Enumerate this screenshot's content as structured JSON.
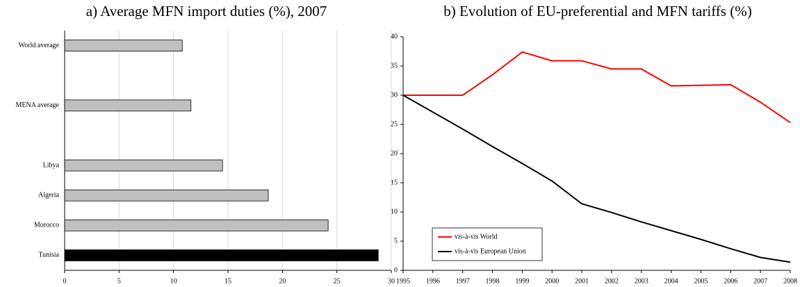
{
  "chart_data": [
    {
      "type": "barh",
      "title": "a) Average MFN import duties (%), 2007",
      "categories": [
        "World average",
        null,
        "MENA average",
        null,
        "Libya",
        "Algeria",
        "Morocco",
        "Tunisia"
      ],
      "values": [
        10.8,
        null,
        11.6,
        null,
        14.5,
        18.7,
        24.2,
        28.8
      ],
      "colors": [
        "#c0c0c0",
        "#c0c0c0",
        "#c0c0c0",
        "#c0c0c0",
        "#c0c0c0",
        "#c0c0c0",
        "#c0c0c0",
        "#000000"
      ],
      "xlim": [
        0,
        30
      ],
      "xticks": [
        0,
        5,
        10,
        15,
        20,
        25,
        30
      ],
      "grid": true
    },
    {
      "type": "line",
      "title": "b) Evolution of EU-preferential and MFN tariffs (%)",
      "x": [
        1995,
        1996,
        1997,
        1998,
        1999,
        2000,
        2001,
        2002,
        2003,
        2004,
        2005,
        2006,
        2007,
        2008
      ],
      "series": [
        {
          "name": "vis-à-vis World",
          "color": "#ff0000",
          "values": [
            30,
            30,
            30,
            33.5,
            37.4,
            35.9,
            35.9,
            34.5,
            34.5,
            31.6,
            31.7,
            31.8,
            28.8,
            25.3
          ]
        },
        {
          "name": "vis-à-vis European Union",
          "color": "#000000",
          "values": [
            30,
            27.1,
            24.2,
            21.2,
            18.3,
            15.3,
            11.4,
            9.9,
            8.3,
            6.8,
            5.3,
            3.7,
            2.2,
            1.4
          ]
        }
      ],
      "xlim": [
        1995,
        2008
      ],
      "xticks": [
        1995,
        1996,
        1997,
        1998,
        1999,
        2000,
        2001,
        2002,
        2003,
        2004,
        2005,
        2006,
        2007,
        2008
      ],
      "ylim": [
        0,
        40
      ],
      "yticks": [
        0,
        5,
        10,
        15,
        20,
        25,
        30,
        35,
        40
      ],
      "grid": false,
      "legend": "lower left"
    }
  ]
}
